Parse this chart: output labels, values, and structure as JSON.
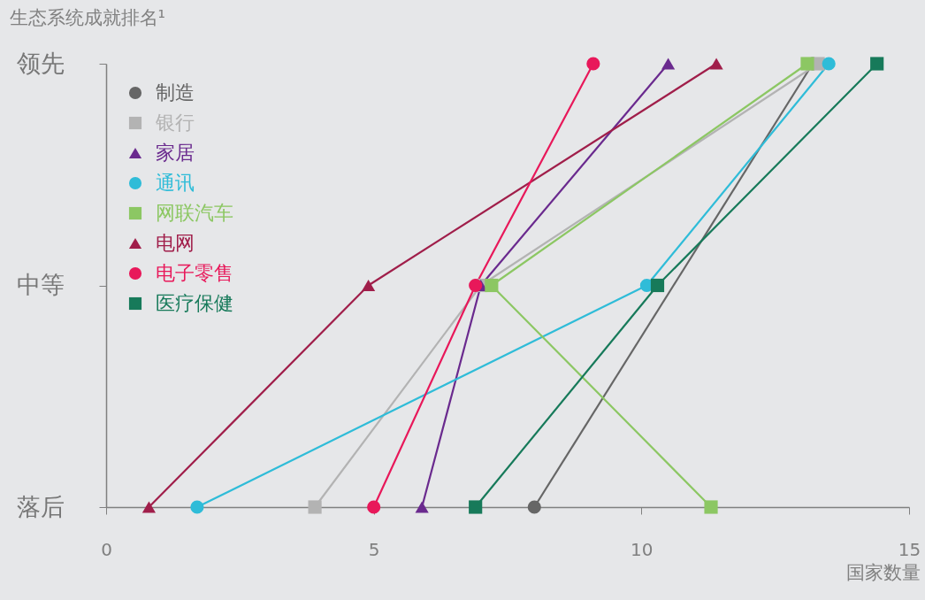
{
  "chart_data": {
    "type": "line",
    "orientation": "horizontal",
    "ylabel": "生态系统成就排名¹",
    "xlabel": "国家数量",
    "categories": [
      "领先",
      "中等",
      "落后"
    ],
    "xlim": [
      0,
      15
    ],
    "xticks": [
      0,
      5,
      10,
      15
    ],
    "legend": "top left",
    "series": [
      {
        "name": "制造",
        "color": "#666666",
        "marker": "circle",
        "values": [
          13.2,
          null,
          8.0
        ]
      },
      {
        "name": "银行",
        "color": "#b3b3b3",
        "marker": "square",
        "values": [
          13.3,
          7.0,
          3.9
        ]
      },
      {
        "name": "家居",
        "color": "#6a2a8e",
        "marker": "triangle",
        "values": [
          10.5,
          7.0,
          5.9
        ]
      },
      {
        "name": "通讯",
        "color": "#2fbcd8",
        "marker": "circle",
        "values": [
          13.5,
          10.1,
          1.7
        ]
      },
      {
        "name": "网联汽车",
        "color": "#8cc763",
        "marker": "square",
        "values": [
          13.1,
          7.2,
          11.3
        ]
      },
      {
        "name": "电网",
        "color": "#a01e4a",
        "marker": "triangle",
        "values": [
          11.4,
          4.9,
          0.8
        ]
      },
      {
        "name": "电子零售",
        "color": "#e8185a",
        "marker": "circle",
        "values": [
          9.1,
          6.9,
          5.0
        ]
      },
      {
        "name": "医疗保健",
        "color": "#177a5a",
        "marker": "square",
        "values": [
          14.4,
          10.3,
          6.9
        ]
      }
    ]
  }
}
